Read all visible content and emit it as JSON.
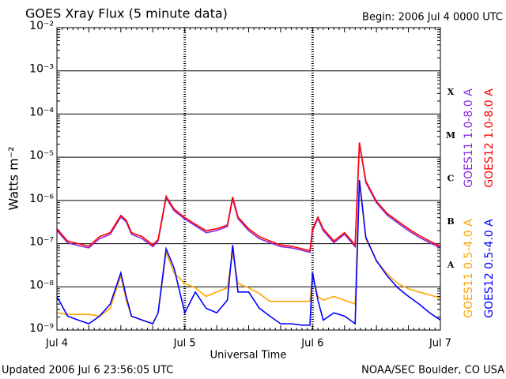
{
  "chart_data": {
    "type": "line",
    "title": "GOES Xray Flux (5 minute data)",
    "subtitle": "Begin:  2006 Jul 4 0000 UTC",
    "xlabel": "Universal Time",
    "ylabel": "Watts m⁻²",
    "footer_left": "Updated 2006 Jul  6 23:56:05 UTC",
    "footer_right": "NOAA/SEC Boulder, CO USA",
    "ylog": true,
    "grid": true,
    "xlim": [
      0,
      72
    ],
    "ylim": [
      1e-09,
      0.01
    ],
    "xticks": [
      {
        "value": 0,
        "label": "Jul 4"
      },
      {
        "value": 24,
        "label": "Jul 5"
      },
      {
        "value": 48,
        "label": "Jul 6"
      },
      {
        "value": 72,
        "label": "Jul 7"
      }
    ],
    "yticks": [
      {
        "value": 1e-09,
        "label": "10⁻⁹"
      },
      {
        "value": 1e-08,
        "label": "10⁻⁸"
      },
      {
        "value": 1e-07,
        "label": "10⁻⁷"
      },
      {
        "value": 1e-06,
        "label": "10⁻⁶"
      },
      {
        "value": 1e-05,
        "label": "10⁻⁵"
      },
      {
        "value": 0.0001,
        "label": "10⁻⁴"
      },
      {
        "value": 0.001,
        "label": "10⁻³"
      },
      {
        "value": 0.01,
        "label": "10⁻²"
      }
    ],
    "flare_classes": [
      {
        "label": "A",
        "value": 1e-08
      },
      {
        "label": "B",
        "value": 1e-07
      },
      {
        "label": "C",
        "value": 1e-06
      },
      {
        "label": "M",
        "value": 1e-05
      },
      {
        "label": "X",
        "value": 0.0001
      }
    ],
    "x": [
      0,
      2,
      4,
      6,
      8,
      10,
      12,
      13,
      14,
      16,
      18,
      19,
      20.5,
      22,
      24,
      26,
      28,
      30,
      32,
      33,
      34,
      36,
      38,
      40,
      42,
      44,
      46,
      47.5,
      48,
      49,
      50,
      52,
      54,
      56,
      56.8,
      58,
      60,
      62,
      64,
      66,
      68,
      70,
      72
    ],
    "series": [
      {
        "name": "GOES11 1.0-8.0 A",
        "color": "#8a2be2",
        "values": [
          2e-07,
          1.05e-07,
          9e-08,
          8e-08,
          1.3e-07,
          1.65e-07,
          4.1e-07,
          3.2e-07,
          1.65e-07,
          1.3e-07,
          8.5e-08,
          1.15e-07,
          1.15e-06,
          5.8e-07,
          3.7e-07,
          2.6e-07,
          1.8e-07,
          2e-07,
          2.5e-07,
          1.1e-06,
          3.8e-07,
          2e-07,
          1.3e-07,
          1.05e-07,
          8.5e-08,
          8e-08,
          7e-08,
          6.3e-08,
          2e-07,
          3.8e-07,
          2e-07,
          1.05e-07,
          1.65e-07,
          8.5e-08,
          2.1e-05,
          2.6e-06,
          8.8e-07,
          4.6e-07,
          3e-07,
          2e-07,
          1.4e-07,
          1.05e-07,
          8e-08
        ]
      },
      {
        "name": "GOES12 1.0-8.0 A",
        "color": "#ff0000",
        "values": [
          2.2e-07,
          1.15e-07,
          1e-07,
          8.7e-08,
          1.45e-07,
          1.8e-07,
          4.5e-07,
          3.5e-07,
          1.8e-07,
          1.45e-07,
          9.3e-08,
          1.25e-07,
          1.25e-06,
          6.3e-07,
          4e-07,
          2.8e-07,
          2e-07,
          2.2e-07,
          2.7e-07,
          1.2e-06,
          4.1e-07,
          2.2e-07,
          1.45e-07,
          1.15e-07,
          9.3e-08,
          8.7e-08,
          7.6e-08,
          6.8e-08,
          2.2e-07,
          4.1e-07,
          2.2e-07,
          1.15e-07,
          1.8e-07,
          9.3e-08,
          2.2e-05,
          2.8e-06,
          9.5e-07,
          5e-07,
          3.3e-07,
          2.2e-07,
          1.55e-07,
          1.15e-07,
          8.7e-08
        ]
      },
      {
        "name": "GOES11 0.5-4.0 A",
        "color": "#ffa500",
        "values": [
          2.5e-09,
          2.3e-09,
          2.3e-09,
          2.3e-09,
          2.1e-09,
          3.2e-09,
          1.8e-08,
          4.9e-09,
          2.1e-09,
          1.7e-09,
          1.4e-09,
          2.5e-09,
          6.3e-08,
          2.1e-08,
          1.2e-08,
          9.5e-09,
          6e-09,
          7.6e-09,
          9.5e-09,
          6.3e-08,
          1.2e-08,
          9.5e-09,
          7e-09,
          4.6e-09,
          4.6e-09,
          4.6e-09,
          4.6e-09,
          4.6e-09,
          1.8e-08,
          6e-09,
          4.9e-09,
          6e-09,
          4.9e-09,
          4e-09,
          2.8e-06,
          1.3e-07,
          4e-08,
          2e-08,
          1.2e-08,
          9e-09,
          7.6e-09,
          6.5e-09,
          5.5e-09
        ]
      },
      {
        "name": "GOES12 0.5-4.0 A",
        "color": "#0000ff",
        "values": [
          6e-09,
          2.1e-09,
          1.7e-09,
          1.4e-09,
          2.1e-09,
          4e-09,
          2.1e-08,
          6e-09,
          2.1e-09,
          1.7e-09,
          1.4e-09,
          2.5e-09,
          7.6e-08,
          2.7e-08,
          2.5e-09,
          7.6e-09,
          3.2e-09,
          2.5e-09,
          4.9e-09,
          9.3e-08,
          7.6e-09,
          7.6e-09,
          3.2e-09,
          2.1e-09,
          1.4e-09,
          1.4e-09,
          1.3e-09,
          1.3e-09,
          2.1e-08,
          4.9e-09,
          1.7e-09,
          2.5e-09,
          2.1e-09,
          1.4e-09,
          3e-06,
          1.4e-07,
          4e-08,
          1.8e-08,
          9.5e-09,
          6e-09,
          4e-09,
          2.5e-09,
          1.7e-09
        ]
      }
    ]
  }
}
